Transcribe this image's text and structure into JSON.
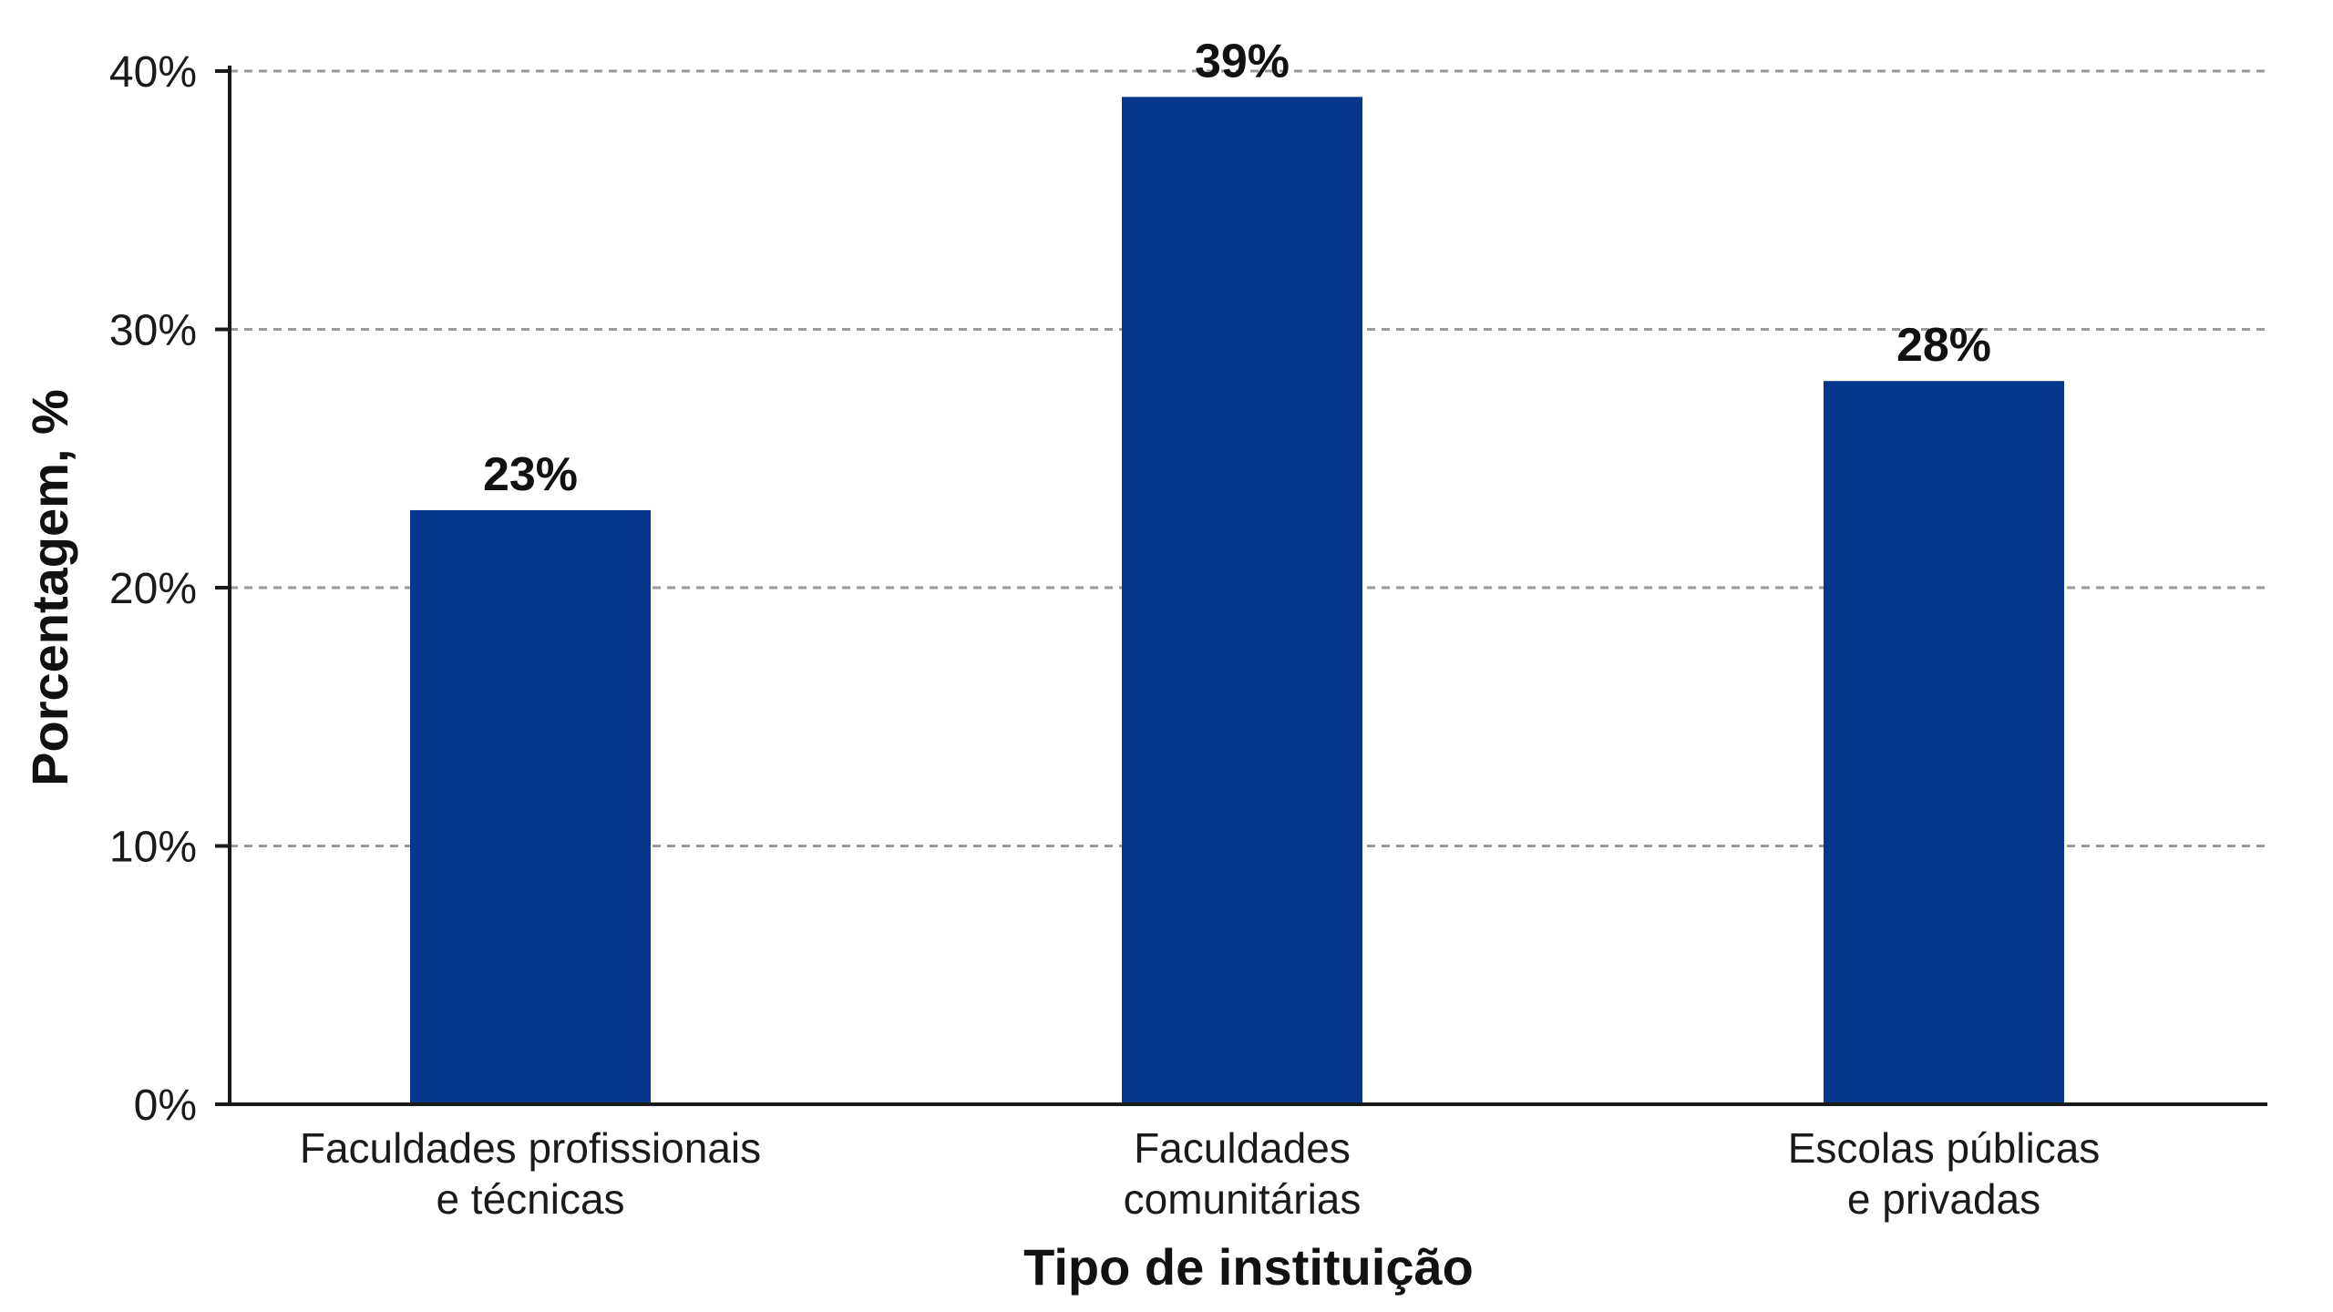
{
  "chart_data": {
    "type": "bar",
    "categories": [
      [
        "Faculdades profissionais",
        "e técnicas"
      ],
      [
        "Faculdades",
        "comunitárias"
      ],
      [
        "Escolas públicas",
        "e privadas"
      ]
    ],
    "values": [
      23,
      39,
      28
    ],
    "data_labels": [
      "23%",
      "39%",
      "28%"
    ],
    "xlabel": "Tipo de instituição",
    "ylabel": "Porcentagem, %",
    "ylim": [
      0,
      40
    ],
    "yticks": [
      0,
      10,
      20,
      30,
      40
    ],
    "ytick_labels": [
      "0%",
      "10%",
      "20%",
      "30%",
      "40%"
    ],
    "grid": "horizontal dashed",
    "bar_color": "#07378a",
    "grid_color": "#9a9a9a"
  }
}
